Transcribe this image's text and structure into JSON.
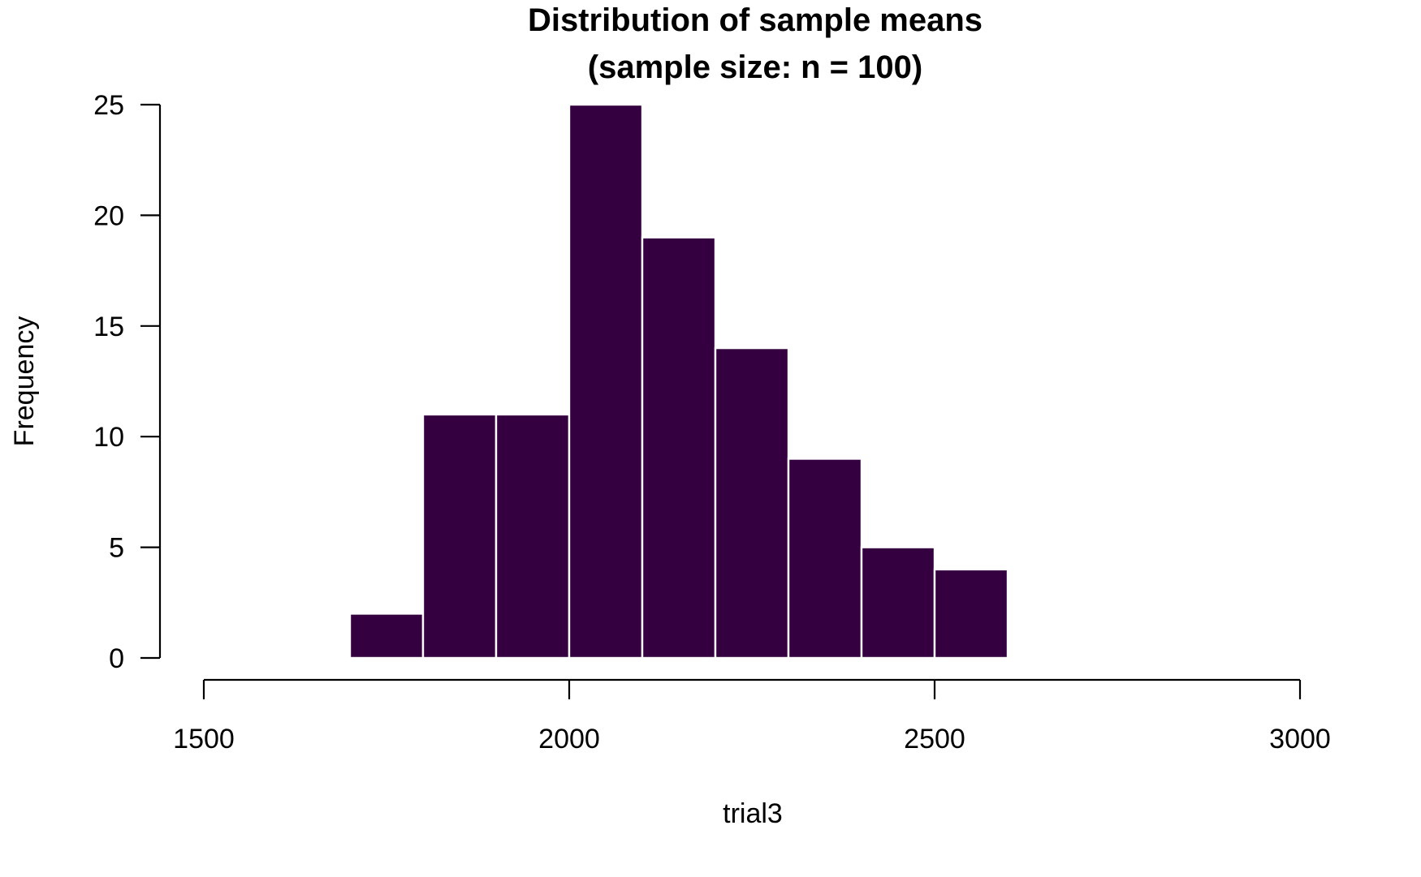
{
  "chart_data": {
    "type": "bar",
    "title": "Distribution of sample means",
    "subtitle": "(sample size: n = 100)",
    "xlabel": "trial3",
    "ylabel": "Frequency",
    "bins": [
      {
        "x0": 1700,
        "x1": 1800,
        "value": 2
      },
      {
        "x0": 1800,
        "x1": 1900,
        "value": 11
      },
      {
        "x0": 1900,
        "x1": 2000,
        "value": 11
      },
      {
        "x0": 2000,
        "x1": 2100,
        "value": 25
      },
      {
        "x0": 2100,
        "x1": 2200,
        "value": 19
      },
      {
        "x0": 2200,
        "x1": 2300,
        "value": 14
      },
      {
        "x0": 2300,
        "x1": 2400,
        "value": 9
      },
      {
        "x0": 2400,
        "x1": 2500,
        "value": 5
      },
      {
        "x0": 2500,
        "x1": 2600,
        "value": 4
      }
    ],
    "xlim": [
      1500,
      3000
    ],
    "ylim": [
      0,
      25
    ],
    "xticks": [
      "1500",
      "2000",
      "2500",
      "3000"
    ],
    "yticks": [
      "0",
      "5",
      "10",
      "15",
      "20",
      "25"
    ],
    "grid": false,
    "bar_color": "#35003f",
    "bar_edge_color": "#ffffff"
  }
}
